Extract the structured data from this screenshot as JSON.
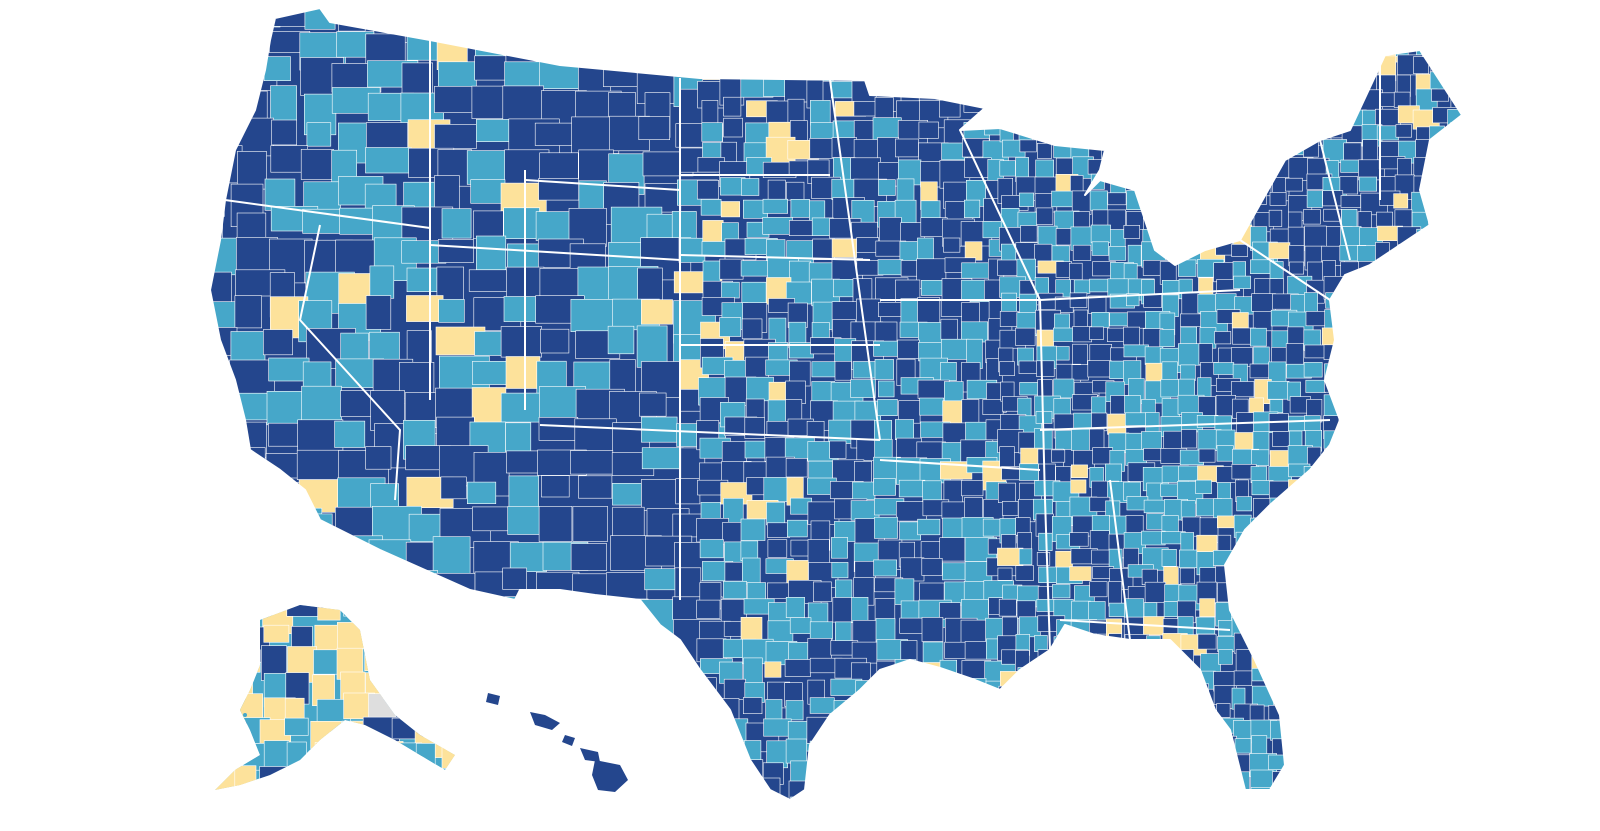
{
  "map": {
    "title": "",
    "legend": [],
    "colors": {
      "dark": "#24468d",
      "medium": "#46a7c9",
      "light": "#fde29b",
      "nodata": "#dedede",
      "background": "#ffffff",
      "border": "#ffffff"
    },
    "regions": [
      {
        "name": "contiguous-us"
      },
      {
        "name": "alaska"
      },
      {
        "name": "hawaii"
      }
    ]
  }
}
